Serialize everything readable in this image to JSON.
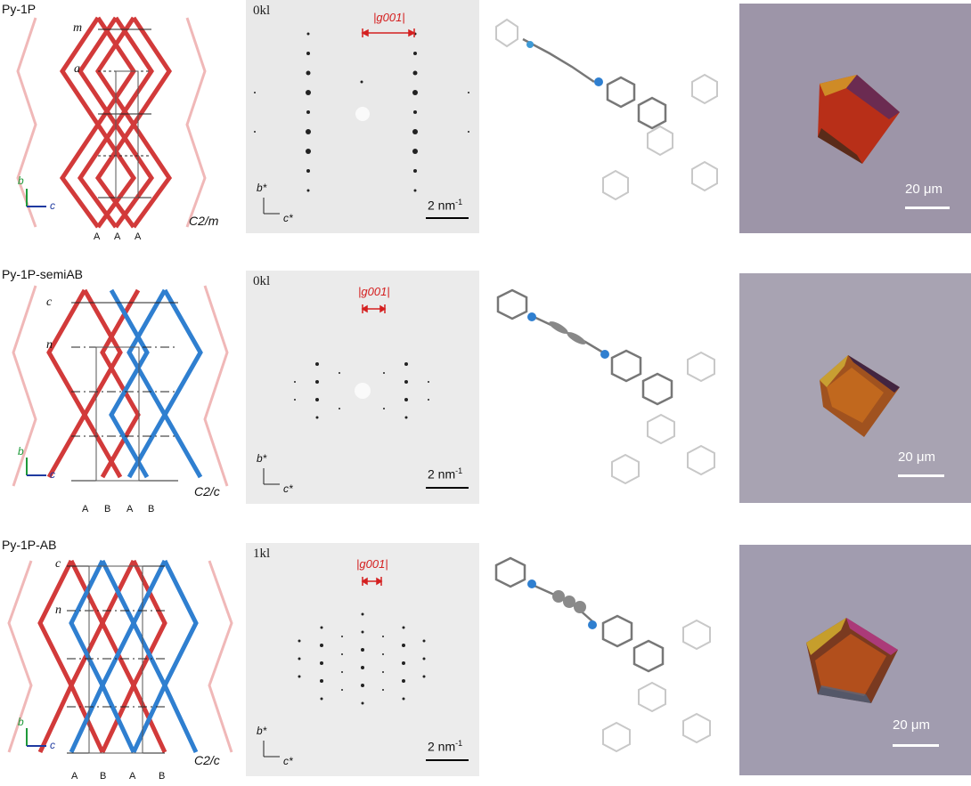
{
  "panels": [
    {
      "name": "Py-1P",
      "lattice_tags": [
        "m",
        "a"
      ],
      "space_group": "C2/m",
      "stacking": [
        "A",
        "A",
        "A"
      ],
      "ed_zone": "0kl",
      "g_label": "|g001|",
      "ed_scale": "2 nm",
      "ed_scale_sup": "-1",
      "ed_axis_b": "b*",
      "ed_axis_c": "c*",
      "photo_scale": "20 μm",
      "axis_b": "b",
      "axis_c": "c"
    },
    {
      "name": "Py-1P-semiAB",
      "lattice_tags": [
        "c",
        "n"
      ],
      "space_group": "C2/c",
      "stacking": [
        "A",
        "B",
        "A",
        "B"
      ],
      "ed_zone": "0kl",
      "g_label": "|g001|",
      "ed_scale": "2 nm",
      "ed_scale_sup": "-1",
      "ed_axis_b": "b*",
      "ed_axis_c": "c*",
      "photo_scale": "20 μm",
      "axis_b": "b",
      "axis_c": "c"
    },
    {
      "name": "Py-1P-AB",
      "lattice_tags": [
        "c",
        "n"
      ],
      "space_group": "C2/c",
      "stacking": [
        "A",
        "B",
        "A",
        "B"
      ],
      "ed_zone": "1kl",
      "g_label": "|g001|",
      "ed_scale": "2 nm",
      "ed_scale_sup": "-1",
      "ed_axis_b": "b*",
      "ed_axis_c": "c*",
      "photo_scale": "20 μm",
      "axis_b": "b",
      "axis_c": "c"
    }
  ],
  "colors": {
    "layerA": "#d23a3a",
    "layerB": "#2f7fd0",
    "photo_bg": "#9d95a8",
    "g_marker": "#d42020"
  }
}
